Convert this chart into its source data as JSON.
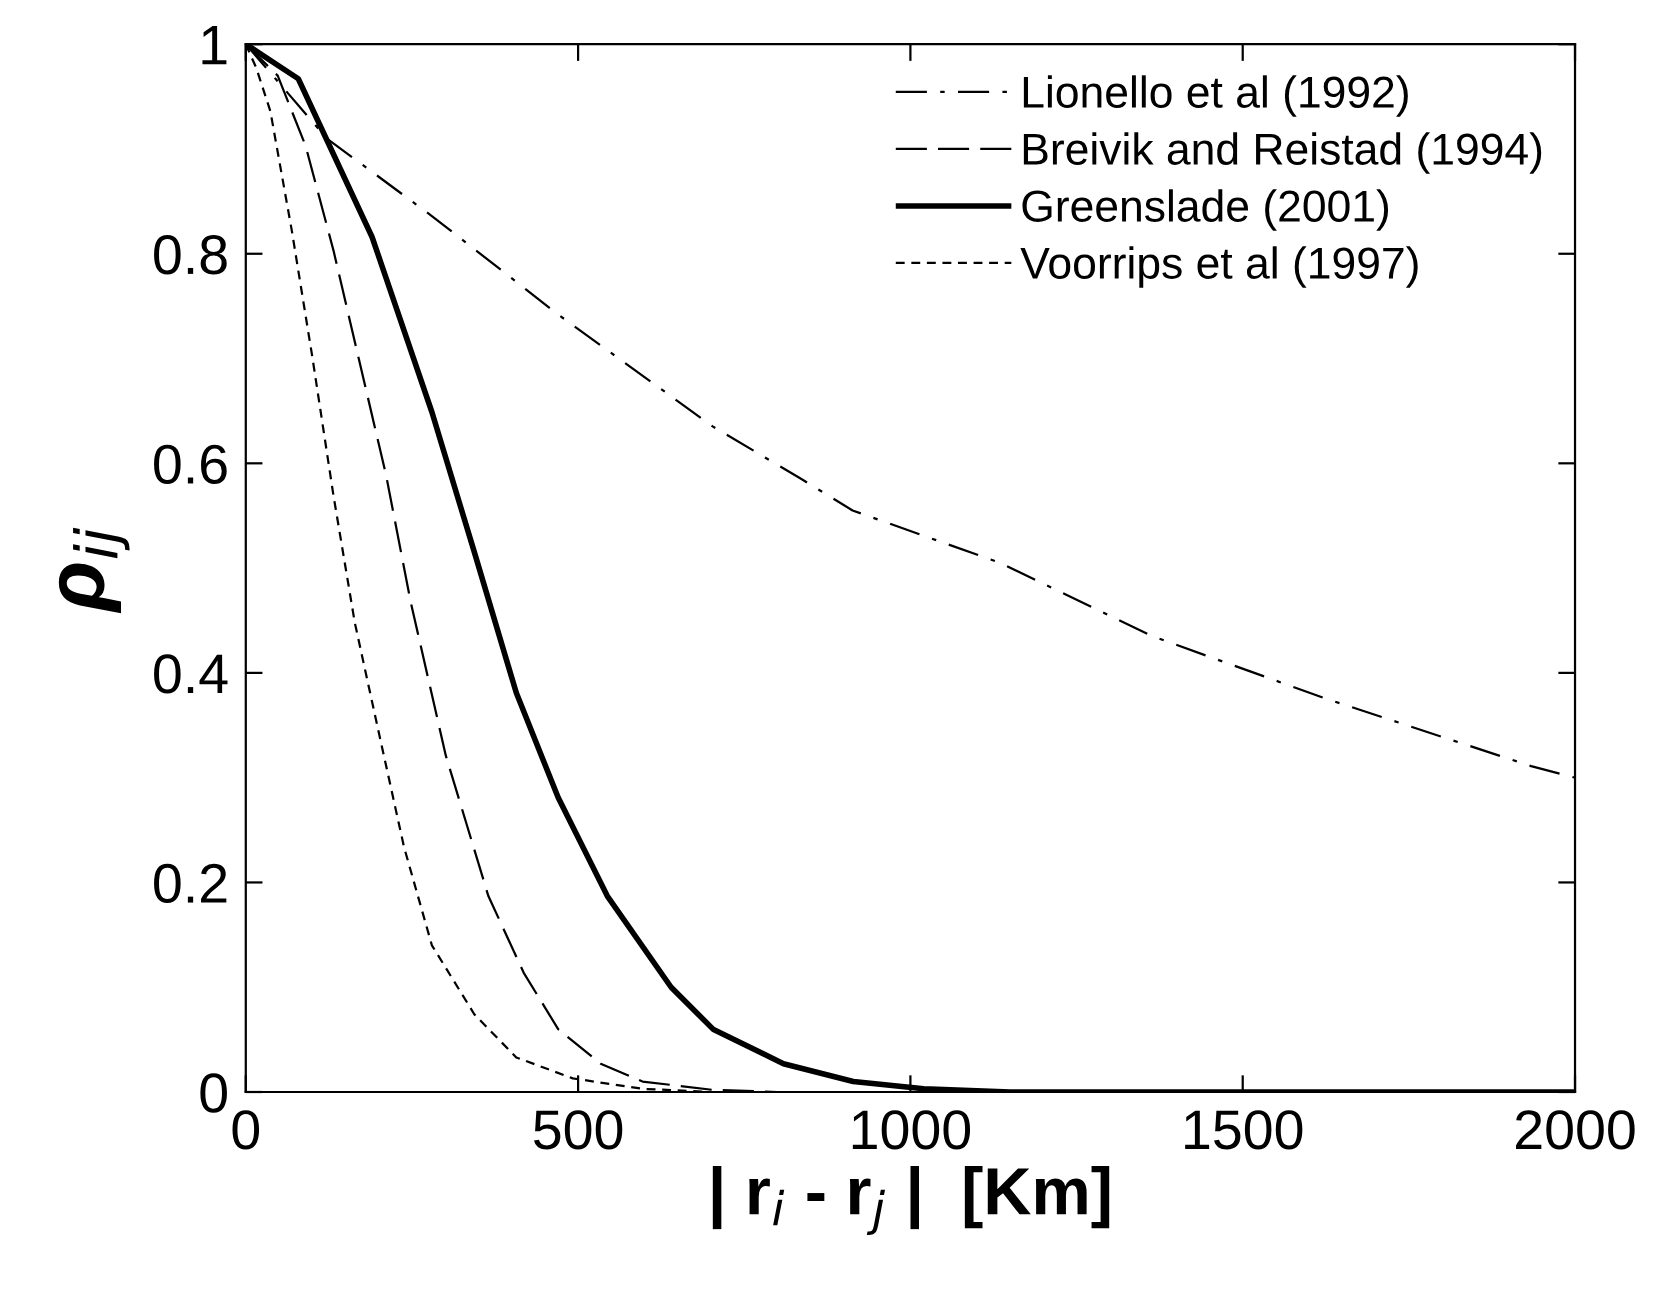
{
  "chart_data": {
    "type": "line",
    "xlabel": "| r$_{i}$ - r$_{j}$ |  [Km]",
    "ylabel": "ρ$_{ij}$",
    "xlim": [
      0,
      2000
    ],
    "ylim": [
      0,
      1
    ],
    "xticks": [
      0,
      500,
      1000,
      1500,
      2000
    ],
    "yticks": [
      0,
      0.2,
      0.4,
      0.6,
      0.8,
      1
    ],
    "grid": false,
    "legend": "top right",
    "marker": "none",
    "series": [
      {
        "name": "Lionello et al (1992)",
        "color": "#000000",
        "line_style": "dashdot",
        "x": [
          0,
          122,
          280,
          470,
          703,
          836,
          913,
          1135,
          1364,
          1627,
          1934,
          2000
        ],
        "values": [
          1,
          0.91,
          0.836,
          0.742,
          0.635,
          0.585,
          0.555,
          0.505,
          0.435,
          0.375,
          0.311,
          0.3
        ]
      },
      {
        "name": "Breivik and Reistad (1994)",
        "color": "#000000",
        "line_style": "dashed",
        "x": [
          0,
          48,
          90,
          132,
          174,
          211,
          248,
          301,
          365,
          418,
          470,
          534,
          597,
          703,
          800
        ],
        "values": [
          1,
          0.97,
          0.903,
          0.803,
          0.689,
          0.589,
          0.468,
          0.321,
          0.187,
          0.114,
          0.06,
          0.027,
          0.01,
          0.002,
          0
        ]
      },
      {
        "name": "Greenslade (2001)",
        "color": "#000000",
        "line_style": "solid",
        "x": [
          0,
          79,
          190,
          280,
          344,
          407,
          470,
          544,
          640,
          703,
          809,
          914,
          1020,
          1150,
          2000
        ],
        "values": [
          1,
          0.967,
          0.816,
          0.649,
          0.515,
          0.381,
          0.281,
          0.187,
          0.1,
          0.06,
          0.027,
          0.01,
          0.003,
          0,
          0
        ]
      },
      {
        "name": "Voorrips et al (1997)",
        "color": "#000000",
        "line_style": "dotted",
        "x": [
          0,
          16,
          37,
          69,
          100,
          132,
          164,
          196,
          238,
          280,
          344,
          407,
          492,
          597,
          703
        ],
        "values": [
          1,
          0.977,
          0.936,
          0.823,
          0.702,
          0.569,
          0.448,
          0.355,
          0.234,
          0.14,
          0.074,
          0.033,
          0.013,
          0.003,
          0
        ]
      }
    ]
  }
}
